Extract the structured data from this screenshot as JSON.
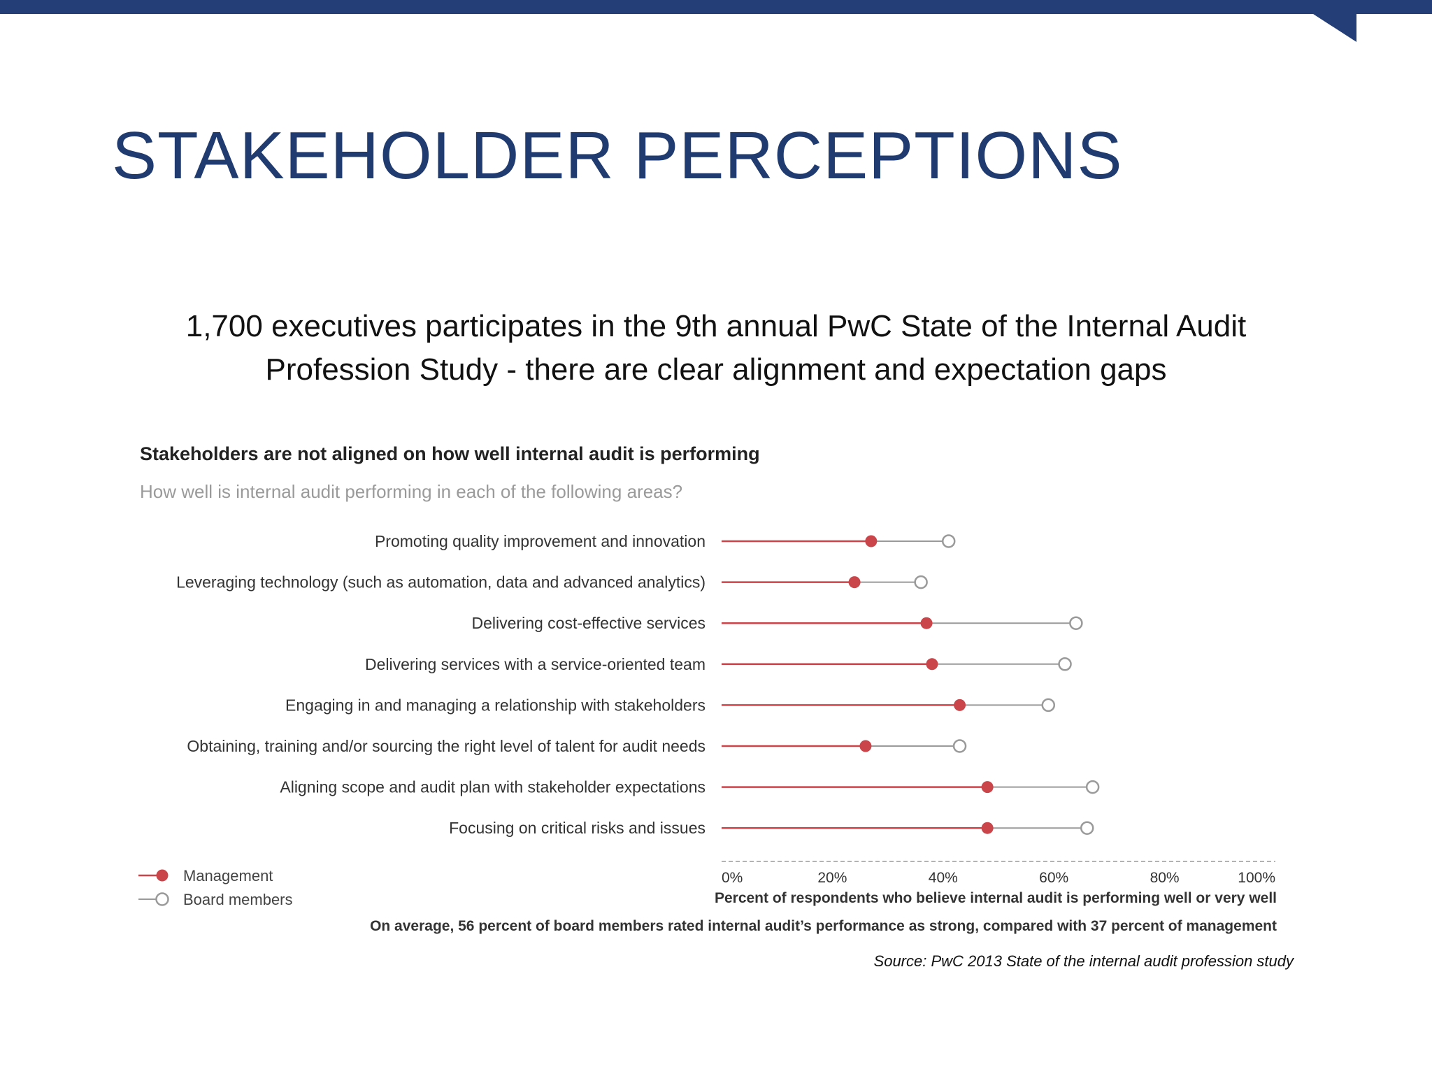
{
  "slide": {
    "title": "STAKEHOLDER PERCEPTIONS",
    "subtitle_line1": "1,700 executives participates in the 9th annual PwC State of the Internal Audit",
    "subtitle_line2": "Profession Study  - there are clear alignment and expectation gaps",
    "source": "Source: PwC 2013 State of the internal audit profession study"
  },
  "colors": {
    "header_bar": "#243f78",
    "title": "#1f3b6f",
    "management": "#c9454a",
    "board": "#9a9a9a"
  },
  "chart_data": {
    "type": "dot-plot",
    "title": "Stakeholders are not aligned on how well internal audit is performing",
    "subtitle": "How well is internal audit performing in each of the following areas?",
    "xlabel": "Percent of respondents who believe internal audit is performing well or very well",
    "xlim": [
      0,
      100
    ],
    "x_ticks": [
      "0%",
      "20%",
      "40%",
      "60%",
      "80%",
      "100%"
    ],
    "grid": false,
    "legend_position": "bottom-left",
    "note": "On average, 56 percent of board members rated internal audit’s performance as strong, compared with 37 percent of management",
    "categories": [
      "Promoting quality improvement and innovation",
      "Leveraging technology (such as automation, data and advanced analytics)",
      "Delivering cost-effective services",
      "Delivering services with a service-oriented team",
      "Engaging in and managing a relationship with stakeholders",
      "Obtaining, training and/or sourcing the right level of talent for audit needs",
      "Aligning scope and audit plan with stakeholder expectations",
      "Focusing on critical risks and issues"
    ],
    "series": [
      {
        "name": "Management",
        "marker": "filled",
        "values": [
          27,
          24,
          37,
          38,
          43,
          26,
          48,
          48
        ]
      },
      {
        "name": "Board members",
        "marker": "open",
        "values": [
          41,
          36,
          64,
          62,
          59,
          43,
          67,
          66
        ]
      }
    ]
  }
}
